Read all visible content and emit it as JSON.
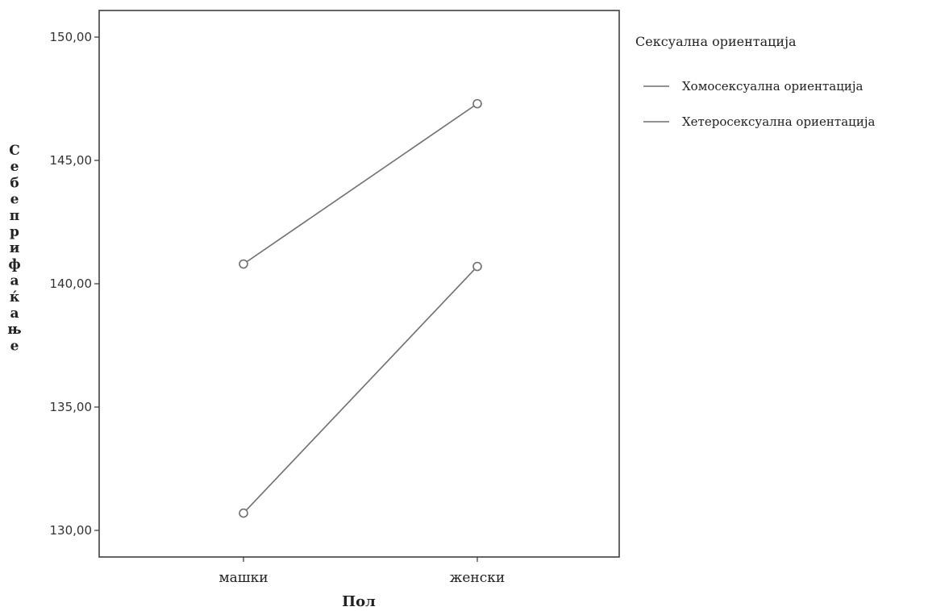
{
  "chart_data": {
    "type": "line",
    "title": "",
    "xlabel": "Пол",
    "ylabel": "Себеприфаќање",
    "categories": [
      "машки",
      "женски"
    ],
    "ylim": [
      129,
      151
    ],
    "yticks": [
      130,
      135,
      140,
      145,
      150
    ],
    "ytick_labels": [
      "130,00",
      "135,00",
      "140,00",
      "145,00",
      "150,00"
    ],
    "grid": false,
    "legend_title": "Сексуална ориентација",
    "legend_position": "right",
    "series": [
      {
        "name": "Хомосексуална ориентација",
        "values": [
          140.8,
          147.3
        ],
        "color": "#6f6f6f"
      },
      {
        "name": "Хетеросексуална ориентација",
        "values": [
          130.7,
          140.7
        ],
        "color": "#6f6f6f"
      }
    ]
  }
}
